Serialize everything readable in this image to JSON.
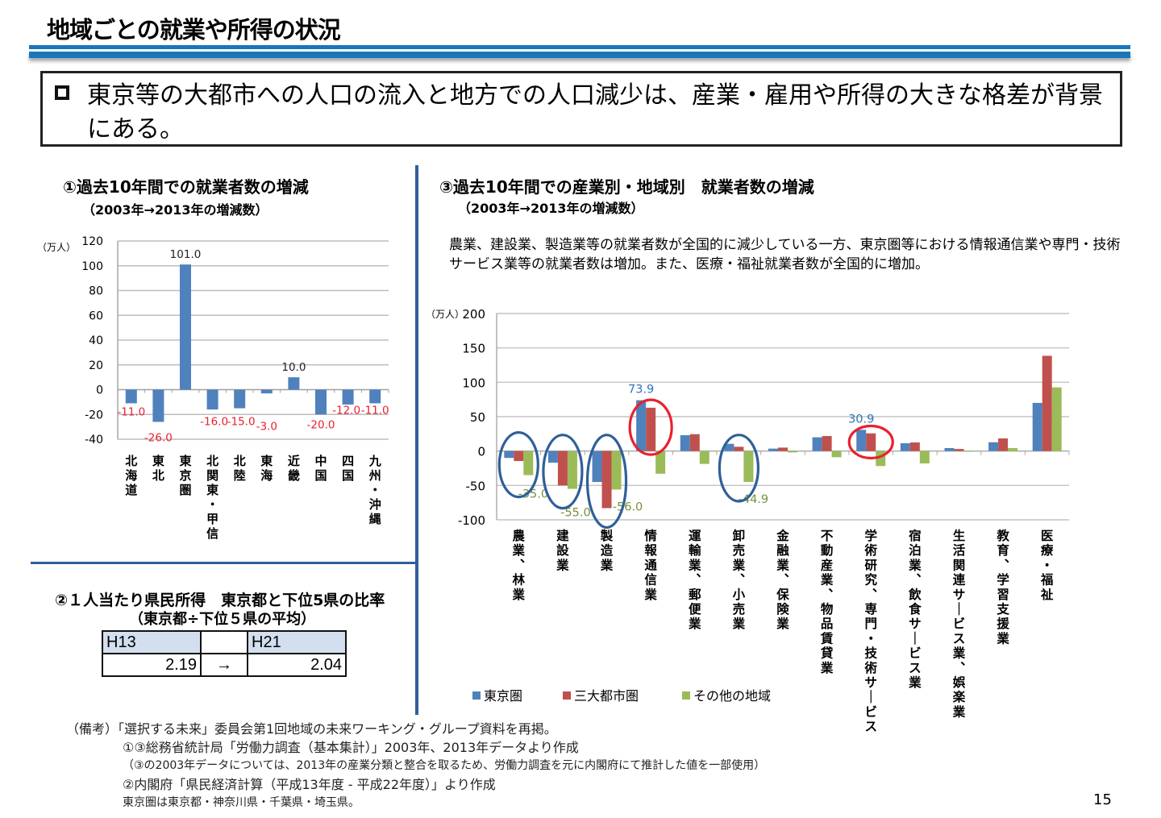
{
  "page": {
    "title": "地域ごとの就業や所得の状況",
    "summary": "東京等の大都市への人口の流入と地方での人口減少は、産業・雇用や所得の大きな格差が背景にある。",
    "page_number": "15"
  },
  "section1": {
    "title": "①過去10年間での就業者数の増減",
    "subtitle": "（2003年→2013年の増減数）"
  },
  "section2": {
    "title": "②１人当たり県民所得　東京都と下位5県の比率",
    "subtitle": "（東京都÷下位５県の平均）",
    "table": {
      "headers": [
        "H13",
        "",
        "H21"
      ],
      "values": [
        "2.19",
        "→",
        "2.04"
      ]
    }
  },
  "section3": {
    "title": "③過去10年間での産業別・地域別　就業者数の増減",
    "subtitle": "（2003年→2013年の増減数）",
    "description": "農業、建設業、製造業等の就業者数が全国的に減少している一方、東京圏等における情報通信業や専門・技術サービス業等の就業者数は増加。また、医療・福祉就業者数が全国的に増加。"
  },
  "remarks": {
    "lines": [
      "（備考）「選択する未来」委員会第1回地域の未来ワーキング・グループ資料を再掲。",
      "①③総務省統計局「労働力調査（基本集計）」2003年、2013年データより作成",
      "（③の2003年データについては、2013年の産業分類と整合を取るため、労働力調査を元に内閣府にて推計した値を一部使用）",
      "②内閣府「県民経済計算（平成13年度 - 平成22年度）」より作成",
      "東京圏は東京都・神奈川県・千葉県・埼玉県。"
    ]
  },
  "chart_data": [
    {
      "type": "bar",
      "title": "①過去10年間での就業者数の増減",
      "ylabel": "（万人）",
      "xlabel": "",
      "ylim": [
        -40,
        120
      ],
      "yticks": [
        120,
        100,
        80,
        60,
        40,
        20,
        0,
        -20,
        -40
      ],
      "grid": true,
      "categories": [
        "北海道",
        "東北",
        "東京圏",
        "北関東・甲信",
        "北陸",
        "東海",
        "近畿",
        "中国",
        "四国",
        "九州・沖縄"
      ],
      "values": [
        -11.0,
        -26.0,
        101.0,
        -16.0,
        -15.0,
        -3.0,
        10.0,
        -20.0,
        -12.0,
        -11.0
      ],
      "data_labels": [
        "-11.0",
        "-26.0",
        "101.0",
        "-16.0",
        "-15.0",
        "-3.0",
        "10.0",
        "-20.0",
        "-12.0",
        "-11.0"
      ],
      "colors": {
        "bar": "#4f81bd",
        "positive_label": "#222222",
        "negative_label": "#e8212e"
      }
    },
    {
      "type": "bar",
      "title": "③過去10年間での産業別・地域別　就業者数の増減",
      "ylabel": "（万人）",
      "xlabel": "",
      "ylim": [
        -100,
        200
      ],
      "yticks": [
        200,
        150,
        100,
        50,
        0,
        -50,
        -100
      ],
      "grid": true,
      "legend": "bottom",
      "categories": [
        "農業、林業",
        "建設業",
        "製造業",
        "情報通信業",
        "運輸業、郵便業",
        "卸売業、小売業",
        "金融業、保険業",
        "不動産業、物品賃貸業",
        "学術研究、専門・技術サービス業",
        "宿泊業、飲食サービス業",
        "生活関連サービス業、娯楽業",
        "教育、学習支援業",
        "医療・福祉"
      ],
      "series": [
        {
          "name": "東京圏",
          "color": "#4f81bd",
          "values": [
            -10,
            -17,
            -45,
            73.9,
            23,
            10.5,
            3.5,
            20,
            30.9,
            11.3,
            4.3,
            12.8,
            70
          ]
        },
        {
          "name": "三大都市圏",
          "color": "#c0504d",
          "values": [
            -14.5,
            -50,
            -83,
            63,
            24.5,
            6.2,
            5,
            21.8,
            25.7,
            12.5,
            3,
            18.3,
            138.5
          ]
        },
        {
          "name": "その他の地域",
          "color": "#9bbb59",
          "values": [
            -35.0,
            -55.0,
            -56.0,
            -33,
            -18.7,
            -44.9,
            -2,
            -9,
            -21.8,
            -18,
            -1,
            4.3,
            92.6
          ]
        }
      ],
      "annotations": [
        {
          "text": "73.9",
          "series": 0,
          "category": 3,
          "color": "#2e74b5"
        },
        {
          "text": "30.9",
          "series": 0,
          "category": 8,
          "color": "#2e74b5"
        },
        {
          "text": "-35.0",
          "series": 2,
          "category": 0,
          "color": "#76923c"
        },
        {
          "text": "-55.0",
          "series": 2,
          "category": 1,
          "color": "#76923c"
        },
        {
          "text": "-56.0",
          "series": 2,
          "category": 2,
          "color": "#76923c"
        },
        {
          "text": "-44.9",
          "series": 2,
          "category": 5,
          "color": "#76923c"
        }
      ],
      "highlight_circles": [
        {
          "category": 0,
          "color": "#2f5f98",
          "meaning": "decrease"
        },
        {
          "category": 1,
          "color": "#2f5f98",
          "meaning": "decrease"
        },
        {
          "category": 2,
          "color": "#2f5f98",
          "meaning": "decrease"
        },
        {
          "category": 5,
          "color": "#2f5f98",
          "meaning": "decrease"
        },
        {
          "category": 3,
          "color": "#e8212e",
          "meaning": "increase"
        },
        {
          "category": 8,
          "color": "#e8212e",
          "meaning": "increase"
        }
      ]
    }
  ]
}
